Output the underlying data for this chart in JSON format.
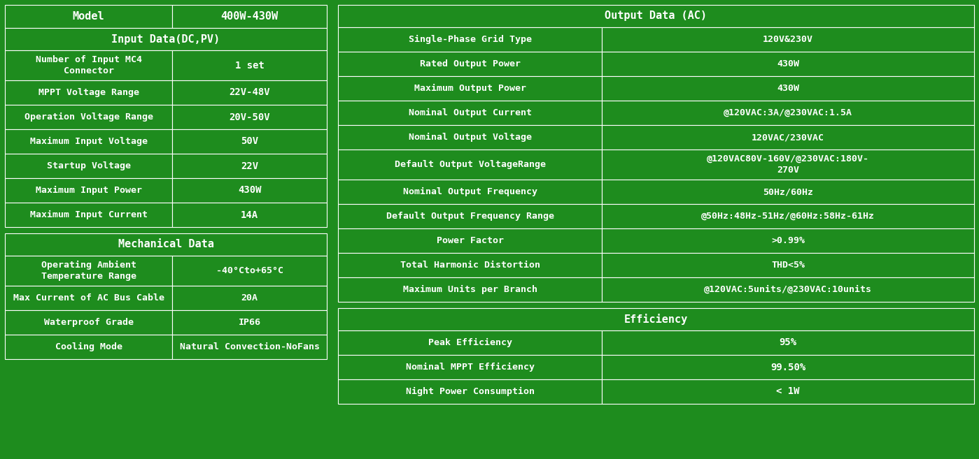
{
  "bg_color": "#1e8c1e",
  "green": "#1e8c1e",
  "white_text": "#ffffff",
  "border_color": "#ffffff",
  "left_table1": {
    "model_label": "Model",
    "model_value": "400W-430W",
    "section_header": "Input Data(DC,PV)",
    "rows": [
      [
        "Number of Input MC4\nConnector",
        "1 set"
      ],
      [
        "MPPT Voltage Range",
        "22V-48V"
      ],
      [
        "Operation Voltage Range",
        "20V-50V"
      ],
      [
        "Maximum Input Voltage",
        "50V"
      ],
      [
        "Startup Voltage",
        "22V"
      ],
      [
        "Maximum Input Power",
        "430W"
      ],
      [
        "Maximum Input Current",
        "14A"
      ]
    ]
  },
  "left_table2": {
    "section_header": "Mechanical Data",
    "rows": [
      [
        "Operating Ambient\nTemperature Range",
        "-40°Cto+65°C"
      ],
      [
        "Max Current of AC Bus Cable",
        "20A"
      ],
      [
        "Waterproof Grade",
        "IP66"
      ],
      [
        "Cooling Mode",
        "Natural Convection-NoFans"
      ]
    ]
  },
  "right_table1": {
    "section_header": "Output Data (AC)",
    "rows": [
      [
        "Single-Phase Grid Type",
        "120V&230V"
      ],
      [
        "Rated Output Power",
        "430W"
      ],
      [
        "Maximum Output Power",
        "430W"
      ],
      [
        "Nominal Output Current",
        "@120VAC:3A/@230VAC:1.5A"
      ],
      [
        "Nominal Output Voltage",
        "120VAC/230VAC"
      ],
      [
        "Default Output VoltageRange",
        "@120VAC80V-160V/@230VAC:180V-\n270V"
      ],
      [
        "Nominal Output Frequency",
        "50Hz/60Hz"
      ],
      [
        "Default Output Frequency Range",
        "@50Hz:48Hz-51Hz/@60Hz:58Hz-61Hz"
      ],
      [
        "Power Factor",
        ">0.99%"
      ],
      [
        "Total Harmonic Distortion",
        "THD<5%"
      ],
      [
        "Maximum Units per Branch",
        "@120VAC:5units/@230VAC:10units"
      ]
    ]
  },
  "right_table2": {
    "section_header": "Efficiency",
    "rows": [
      [
        "Peak Efficiency",
        "95%"
      ],
      [
        "Nominal MPPT Efficiency",
        "99.50%"
      ],
      [
        "Night Power Consumption",
        "< 1W"
      ]
    ]
  }
}
